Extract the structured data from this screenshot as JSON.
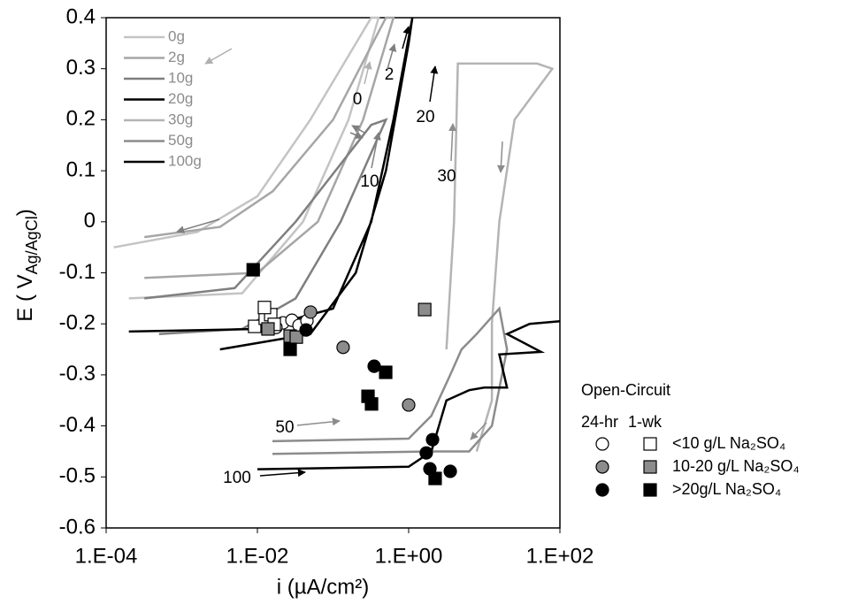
{
  "chart_data": {
    "type": "line",
    "xlabel": "i (µA/cm²)",
    "ylabel": [
      "E",
      " ( V",
      "Ag/AgCl",
      ")"
    ],
    "xscale": "log",
    "xlim": [
      0.0001,
      100
    ],
    "xticks": [
      {
        "value": 0.0001,
        "label": "1.E-04"
      },
      {
        "value": 0.01,
        "label": "1.E-02"
      },
      {
        "value": 1,
        "label": "1.E+00"
      },
      {
        "value": 100,
        "label": "1.E+02"
      }
    ],
    "ylim": [
      -0.6,
      0.4
    ],
    "yticks": [
      0.4,
      0.3,
      0.2,
      0.1,
      0,
      -0.1,
      -0.2,
      -0.3,
      -0.4,
      -0.5,
      -0.6
    ],
    "legend": "top-left",
    "series": [
      {
        "name": "0g",
        "color": "#c4c4c4",
        "x": [
          0.0002,
          0.0063,
          0.04,
          0.16,
          0.4,
          0.32,
          0.05,
          0.01,
          0.0016,
          0.000126
        ],
        "y": [
          -0.15,
          -0.14,
          0.0,
          0.2,
          0.4,
          0.4,
          0.2,
          0.05,
          -0.02,
          -0.05
        ]
      },
      {
        "name": "2g",
        "color": "#a6a6a6",
        "x": [
          0.00032,
          0.01,
          0.063,
          0.25,
          0.63,
          0.5,
          0.1,
          0.016,
          0.0032,
          0.00032
        ],
        "y": [
          -0.11,
          -0.1,
          0.0,
          0.2,
          0.4,
          0.4,
          0.2,
          0.06,
          -0.01,
          -0.03
        ]
      },
      {
        "name": "10g",
        "color": "#7f7f7f",
        "x": [
          0.0005,
          0.0063,
          0.032,
          0.126,
          0.5,
          0.32,
          0.032,
          0.005,
          0.00032
        ],
        "y": [
          -0.22,
          -0.21,
          -0.15,
          0.0,
          0.2,
          0.19,
          0.0,
          -0.13,
          -0.15
        ]
      },
      {
        "name": "20g",
        "color": "#000000",
        "x": [
          0.0002,
          0.01,
          0.1,
          0.32,
          0.63,
          1.12,
          1.0,
          0.5,
          0.2,
          0.05,
          0.0032
        ],
        "y": [
          -0.215,
          -0.21,
          -0.17,
          0.0,
          0.2,
          0.4,
          0.35,
          0.1,
          -0.1,
          -0.22,
          -0.25
        ]
      },
      {
        "name": "30g",
        "color": "#b4b4b4",
        "x": [
          3.16,
          3.98,
          4.47,
          50,
          79.4,
          25.1,
          15.8,
          12.6,
          12.6,
          7.94
        ],
        "y": [
          -0.25,
          0.0,
          0.31,
          0.31,
          0.3,
          0.2,
          0.0,
          -0.2,
          -0.35,
          -0.45
        ]
      },
      {
        "name": "50g",
        "color": "#8c8c8c",
        "x": [
          0.0158,
          1.0,
          2.0,
          3.55,
          5.01,
          7.94,
          15.8,
          20,
          12.6,
          6.31,
          2.0,
          0.0158
        ],
        "y": [
          -0.43,
          -0.425,
          -0.38,
          -0.3,
          -0.25,
          -0.22,
          -0.17,
          -0.25,
          -0.4,
          -0.45,
          -0.45,
          -0.455
        ]
      },
      {
        "name": "100g",
        "color": "#000000",
        "x": [
          0.01,
          1.0,
          2.0,
          3.16,
          6.31,
          10,
          20,
          15.8,
          56.2,
          20,
          39.8,
          100
        ],
        "y": [
          -0.485,
          -0.48,
          -0.45,
          -0.35,
          -0.33,
          -0.325,
          -0.325,
          -0.26,
          -0.255,
          -0.22,
          -0.2,
          -0.195
        ]
      }
    ],
    "markers": [
      {
        "shape": "circle",
        "fill": "#ffffff",
        "x": [
          0.0218,
          0.0286,
          0.0355,
          0.0452,
          0.0176
        ],
        "y": [
          -0.198,
          -0.193,
          -0.203,
          -0.194,
          -0.207
        ]
      },
      {
        "shape": "square",
        "fill": "#ffffff",
        "x": [
          0.0092,
          0.0127,
          0.015,
          0.0167,
          0.0124
        ],
        "y": [
          -0.205,
          -0.189,
          -0.182,
          -0.201,
          -0.168
        ]
      },
      {
        "shape": "circle",
        "fill": "#8c8c8c",
        "x": [
          0.0504,
          0.136,
          1.0
        ],
        "y": [
          -0.177,
          -0.246,
          -0.359
        ]
      },
      {
        "shape": "square",
        "fill": "#8c8c8c",
        "x": [
          0.0138,
          0.0271,
          0.0327,
          1.63
        ],
        "y": [
          -0.21,
          -0.224,
          -0.226,
          -0.172
        ]
      },
      {
        "shape": "circle",
        "fill": "#000000",
        "x": [
          0.044,
          0.35,
          1.71,
          2.07,
          1.91,
          3.55
        ],
        "y": [
          -0.212,
          -0.283,
          -0.453,
          -0.427,
          -0.484,
          -0.489
        ]
      },
      {
        "shape": "square",
        "fill": "#000000",
        "x": [
          0.0088,
          0.0271,
          0.29,
          0.323,
          0.497,
          2.24
        ],
        "y": [
          -0.094,
          -0.25,
          -0.342,
          -0.357,
          -0.295,
          -0.503
        ]
      }
    ],
    "marker_legend": {
      "title": "Open-Circuit",
      "columns": [
        "24-hr",
        "1-wk"
      ],
      "rows": [
        "<10 g/L Na₂SO₄",
        "10-20 g/L Na₂SO₄",
        ">20g/L Na₂SO₄"
      ]
    },
    "annotations": [
      "0",
      "2",
      "10",
      "20",
      "30",
      "50",
      "100"
    ]
  }
}
